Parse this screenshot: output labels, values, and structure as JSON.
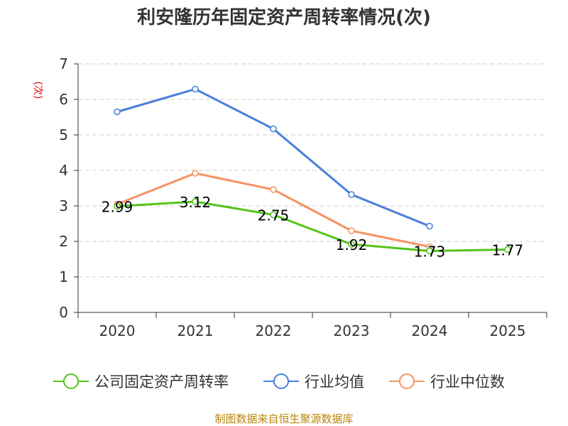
{
  "chart_data": {
    "type": "line",
    "title": "利安隆历年固定资产周转率情况(次)",
    "ylabel": "(次)",
    "xlabel": "",
    "categories": [
      "2020",
      "2021",
      "2022",
      "2023",
      "2024",
      "2025"
    ],
    "ylim": [
      0,
      7
    ],
    "yticks": [
      0,
      1,
      2,
      3,
      4,
      5,
      6,
      7
    ],
    "grid": "horizontal-dashed",
    "legend_position": "bottom",
    "series": [
      {
        "name": "公司固定资产周转率",
        "color": "#52c41a",
        "values": [
          2.99,
          3.12,
          2.75,
          1.92,
          1.73,
          1.77
        ],
        "labels": [
          "2.99",
          "3.12",
          "2.75",
          "1.92",
          "1.73",
          "1.77"
        ]
      },
      {
        "name": "行业均值",
        "color": "#4a7fd9",
        "values": [
          5.65,
          6.29,
          5.17,
          3.32,
          2.43,
          null
        ]
      },
      {
        "name": "行业中位数",
        "color": "#f79263",
        "values": [
          3.05,
          3.92,
          3.46,
          2.3,
          1.85,
          null
        ]
      }
    ]
  },
  "source_text": "制图数据来自恒生聚源数据库"
}
